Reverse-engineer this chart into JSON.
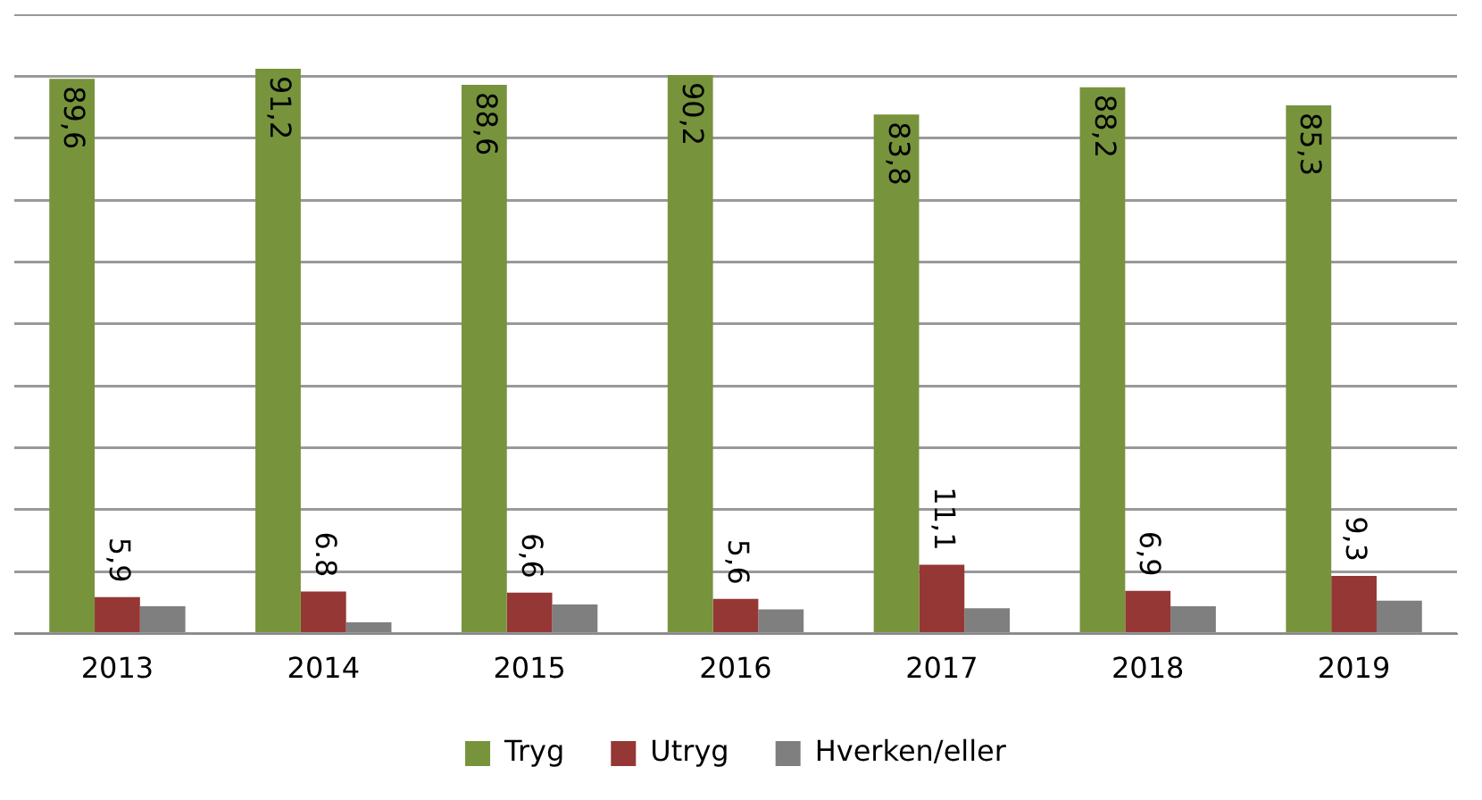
{
  "chart_data": {
    "type": "bar",
    "categories": [
      "2013",
      "2014",
      "2015",
      "2016",
      "2017",
      "2018",
      "2019"
    ],
    "series": [
      {
        "name": "Tryg",
        "color": "#77933c",
        "values": [
          89.6,
          91.2,
          88.6,
          90.2,
          83.8,
          88.2,
          85.3
        ],
        "value_labels": [
          "89,6",
          "91,2",
          "88,6",
          "90,2",
          "83,8",
          "88,2",
          "85,3"
        ]
      },
      {
        "name": "Utryg",
        "color": "#953735",
        "values": [
          5.9,
          6.8,
          6.6,
          5.6,
          11.1,
          6.9,
          9.3
        ],
        "value_labels": [
          "5,9",
          "6.8",
          "6,6",
          "5,6",
          "11,1",
          "6,9",
          "9,3"
        ]
      },
      {
        "name": "Hverken/eller",
        "color": "#7f7f7f",
        "values": [
          4.4,
          1.8,
          4.7,
          3.9,
          4.1,
          4.4,
          5.3
        ]
      }
    ],
    "ylim": [
      0,
      100
    ],
    "yticks": [
      {
        "value": 0,
        "label": null
      },
      {
        "value": 10,
        "label": null
      },
      {
        "value": 20,
        "label": null
      },
      {
        "value": 30,
        "label": null
      },
      {
        "value": 40,
        "label": null
      },
      {
        "value": 50,
        "label": null
      },
      {
        "value": 60,
        "label": null
      },
      {
        "value": 70,
        "label": null
      },
      {
        "value": 80,
        "label": null
      },
      {
        "value": 90,
        "label": null
      },
      {
        "value": 100,
        "label": null
      }
    ],
    "tick_labels": "x",
    "grid": "y",
    "legend": "bottom"
  }
}
